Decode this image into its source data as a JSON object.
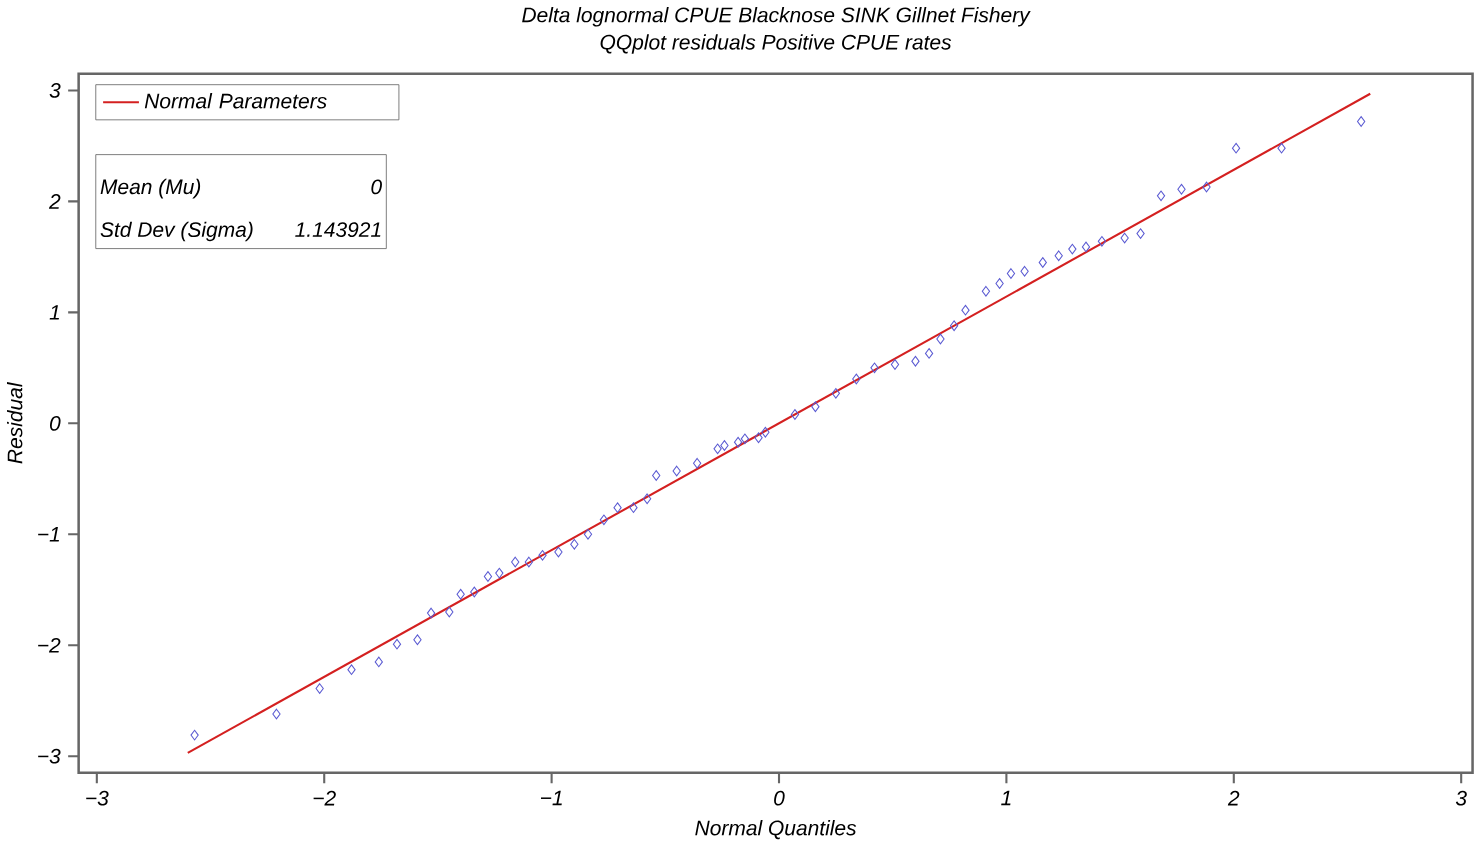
{
  "chart_data": {
    "type": "scatter",
    "title": "Delta lognormal CPUE Blacknose SINK Gillnet Fishery",
    "subtitle": "QQplot residuals Positive CPUE rates",
    "xlabel": "Normal Quantiles",
    "ylabel": "Residual",
    "xlim": [
      -3.08,
      3.05
    ],
    "ylim": [
      -3.15,
      3.15
    ],
    "xticks": [
      {
        "value": -3,
        "label": "−3"
      },
      {
        "value": -2,
        "label": "−2"
      },
      {
        "value": -1,
        "label": "−1"
      },
      0,
      1,
      2,
      3
    ],
    "yticks": [
      {
        "value": -3,
        "label": "−3"
      },
      {
        "value": -2,
        "label": "−2"
      },
      {
        "value": -1,
        "label": "−1"
      },
      0,
      1,
      2,
      3
    ],
    "legend": "top left",
    "annotations": [
      "Mean (Mu)",
      "0",
      "Std Dev (Sigma)",
      "1.143921"
    ],
    "series": [
      {
        "color": "#5a5ad2",
        "marker": "diamond",
        "x": [
          -2.57,
          -2.21,
          -2.02,
          -1.88,
          -1.76,
          -1.68,
          -1.59,
          -1.53,
          -1.45,
          -1.4,
          -1.34,
          -1.28,
          -1.23,
          -1.16,
          -1.1,
          -1.04,
          -0.97,
          -0.9,
          -0.84,
          -0.77,
          -0.71,
          -0.64,
          -0.58,
          -0.54,
          -0.45,
          -0.36,
          -0.27,
          -0.24,
          -0.18,
          -0.15,
          -0.09,
          -0.06,
          0.07,
          0.16,
          0.25,
          0.34,
          0.42,
          0.51,
          0.6,
          0.66,
          0.71,
          0.77,
          0.82,
          0.91,
          0.97,
          1.02,
          1.08,
          1.16,
          1.23,
          1.29,
          1.35,
          1.42,
          1.52,
          1.59,
          1.68,
          1.77,
          1.88,
          2.01,
          2.21,
          2.56
        ],
        "values": [
          -2.81,
          -2.62,
          -2.39,
          -2.22,
          -2.15,
          -1.99,
          -1.95,
          -1.71,
          -1.7,
          -1.54,
          -1.52,
          -1.38,
          -1.35,
          -1.25,
          -1.25,
          -1.19,
          -1.16,
          -1.09,
          -1.0,
          -0.87,
          -0.76,
          -0.76,
          -0.68,
          -0.47,
          -0.43,
          -0.36,
          -0.23,
          -0.2,
          -0.17,
          -0.14,
          -0.13,
          -0.08,
          0.08,
          0.15,
          0.27,
          0.4,
          0.5,
          0.53,
          0.56,
          0.63,
          0.76,
          0.88,
          1.02,
          1.19,
          1.26,
          1.35,
          1.37,
          1.45,
          1.51,
          1.57,
          1.59,
          1.64,
          1.67,
          1.71,
          2.05,
          2.11,
          2.13,
          2.48,
          2.48,
          2.72
        ]
      },
      {
        "type": "line",
        "name": "Normal Parameters",
        "color": "#d42020",
        "marker": "none",
        "line_style": "solid",
        "x": [
          -2.6,
          2.6
        ],
        "values": [
          -2.97,
          2.97
        ]
      }
    ]
  }
}
